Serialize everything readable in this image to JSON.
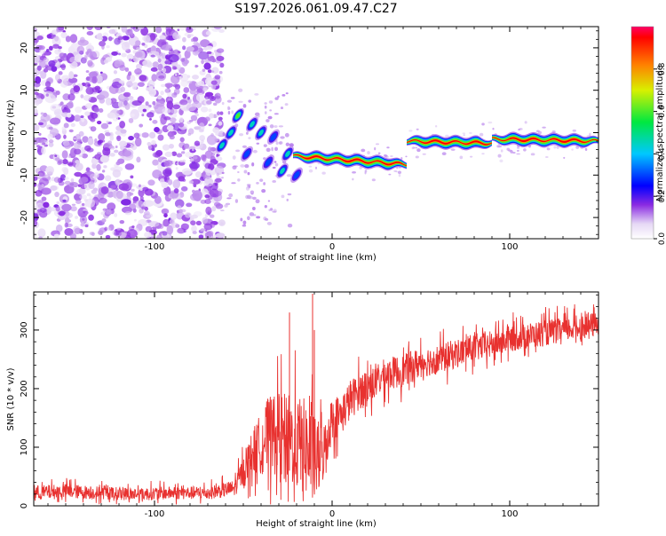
{
  "title": "S197.2026.061.09.47.C27",
  "chart_data": [
    {
      "type": "heatmap",
      "xlabel": "Height of straight line (km)",
      "ylabel": "Frequency (Hz)",
      "xlim": [
        -168,
        150
      ],
      "ylim": [
        -25,
        25
      ],
      "xticks": [
        -100,
        0,
        100
      ],
      "xtick_labels": [
        "-100",
        "0",
        "100"
      ],
      "yticks": [
        -20,
        -10,
        0,
        10,
        20
      ],
      "ytick_labels": [
        "-20",
        "-10",
        "0",
        "10",
        "20"
      ],
      "colorbar": {
        "label": "Normalized spectral amplitude",
        "range": [
          0,
          1
        ],
        "ticks": [
          0.0,
          0.2,
          0.4,
          0.6,
          0.8
        ],
        "tick_labels": [
          "0.0",
          "0.2",
          "0.4",
          "0.6",
          "0.8"
        ]
      },
      "noise_region": {
        "x_from": -168,
        "x_to": -62,
        "amplitude": 0.15
      },
      "tone_segments": [
        {
          "x_from": -22,
          "x_to": 42,
          "freq_start": -5.5,
          "freq_end": -7.5,
          "amplitude": 1.0
        },
        {
          "x_from": 42,
          "x_to": 90,
          "freq_start": -2.0,
          "freq_end": -2.5,
          "amplitude": 1.0
        },
        {
          "x_from": 90,
          "x_to": 150,
          "freq_start": -1.5,
          "freq_end": -2.0,
          "amplitude": 1.0
        }
      ],
      "blobs": [
        {
          "x": -53,
          "y": 4,
          "amplitude": 0.6
        },
        {
          "x": -57,
          "y": 0,
          "amplitude": 0.4
        },
        {
          "x": -62,
          "y": -3,
          "amplitude": 0.5
        },
        {
          "x": -45,
          "y": 2,
          "amplitude": 0.5
        },
        {
          "x": -40,
          "y": 0,
          "amplitude": 0.45
        },
        {
          "x": -33,
          "y": -1,
          "amplitude": 0.35
        },
        {
          "x": -25,
          "y": -5,
          "amplitude": 0.5
        },
        {
          "x": -28,
          "y": -9,
          "amplitude": 0.4
        },
        {
          "x": -36,
          "y": -7,
          "amplitude": 0.35
        },
        {
          "x": -48,
          "y": -5,
          "amplitude": 0.3
        },
        {
          "x": -20,
          "y": -10,
          "amplitude": 0.3
        }
      ]
    },
    {
      "type": "line",
      "xlabel": "Height of straight line (km)",
      "ylabel": "SNR (10 * v/v)",
      "xlim": [
        -168,
        150
      ],
      "ylim": [
        0,
        365
      ],
      "xticks": [
        -100,
        0,
        100
      ],
      "xtick_labels": [
        "-100",
        "0",
        "100"
      ],
      "yticks": [
        0,
        100,
        200,
        300
      ],
      "ytick_labels": [
        "0",
        "100",
        "200",
        "300"
      ],
      "series": [
        {
          "name": "SNR",
          "color": "#e8312f",
          "x": [
            -168,
            -150,
            -130,
            -110,
            -90,
            -70,
            -55,
            -45,
            -35,
            -25,
            -15,
            -10,
            -5,
            0,
            5,
            10,
            15,
            20,
            25,
            30,
            40,
            50,
            60,
            70,
            80,
            90,
            100,
            110,
            120,
            130,
            140,
            150
          ],
          "y": [
            22,
            25,
            22,
            20,
            22,
            22,
            30,
            90,
            125,
            115,
            100,
            75,
            90,
            150,
            155,
            180,
            195,
            205,
            210,
            225,
            230,
            245,
            250,
            260,
            270,
            275,
            285,
            290,
            295,
            300,
            305,
            310
          ],
          "noise": [
            18,
            18,
            16,
            16,
            16,
            16,
            20,
            55,
            95,
            110,
            120,
            110,
            70,
            55,
            50,
            50,
            45,
            45,
            40,
            40,
            40,
            38,
            36,
            36,
            34,
            34,
            32,
            32,
            32,
            30,
            30,
            30
          ]
        }
      ],
      "spikes": [
        {
          "x": -11,
          "y": 362
        },
        {
          "x": -24,
          "y": 330
        },
        {
          "x": -10,
          "y": 300
        }
      ]
    }
  ]
}
